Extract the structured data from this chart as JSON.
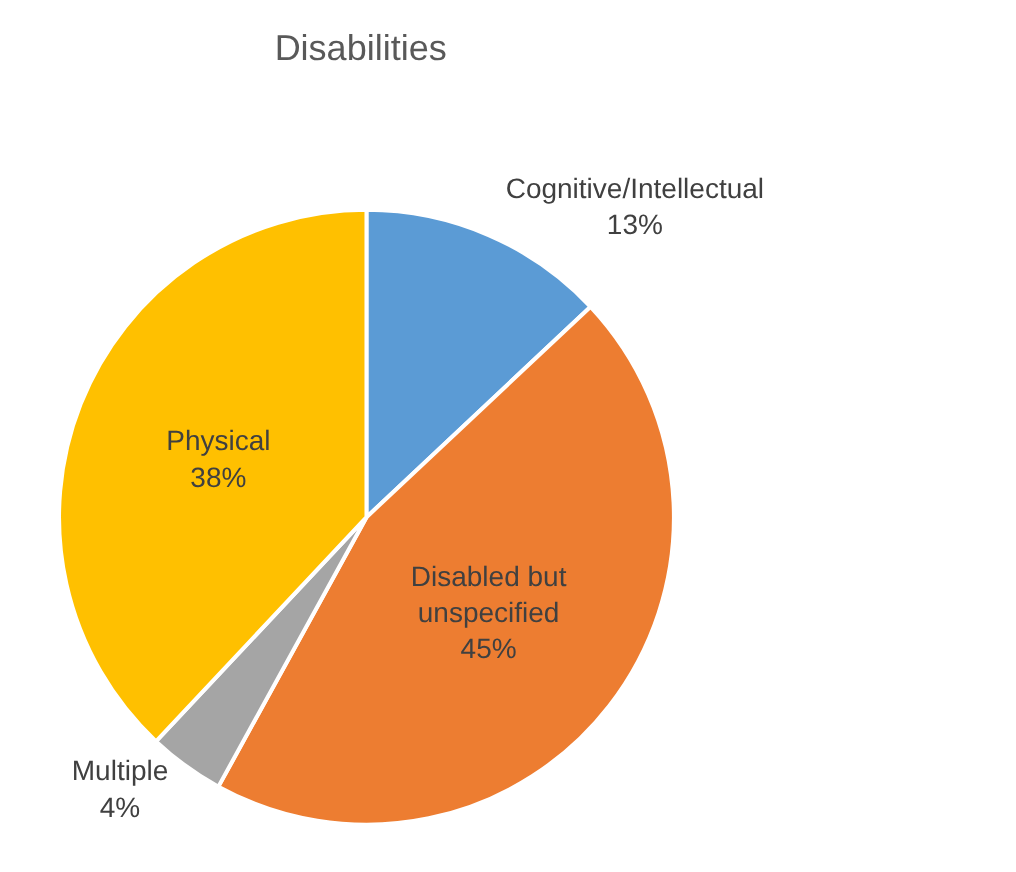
{
  "chart_data": {
    "type": "pie",
    "title": "Disabilities",
    "categories": [
      "Cognitive/Intellectual",
      "Disabled but unspecified",
      "Multiple",
      "Physical"
    ],
    "values": [
      13,
      45,
      4,
      38
    ],
    "colors": [
      "#5b9bd5",
      "#ed7d31",
      "#a5a5a5",
      "#ffc000"
    ],
    "value_labels": [
      "13%",
      "45%",
      "4%",
      "38%"
    ],
    "legend": false
  }
}
